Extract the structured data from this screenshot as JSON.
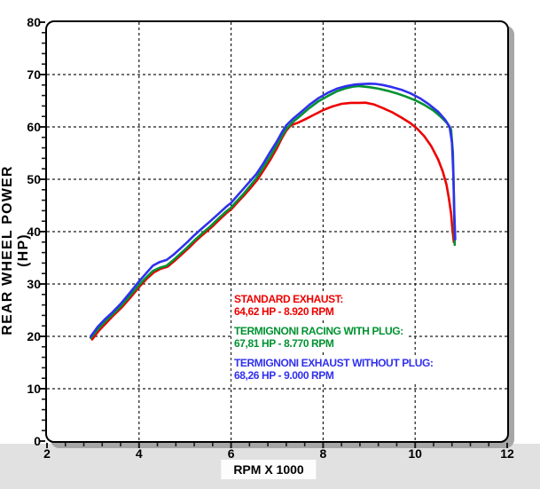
{
  "axes": {
    "x_title": "RPM X 1000",
    "y_title": "REAR WHEEL POWER (HP)",
    "x_tick_labels": [
      "2",
      "4",
      "6",
      "8",
      "10",
      "12"
    ],
    "y_tick_labels": [
      "0",
      "10",
      "20",
      "30",
      "40",
      "50",
      "60",
      "70",
      "80"
    ]
  },
  "legend": {
    "entries": [
      {
        "label": "STANDARD EXHAUST:",
        "value": "64,62 HP - 8.920 RPM",
        "color": "#ee0000"
      },
      {
        "label": "TERMIGNONI RACING WITH PLUG:",
        "value": "67,81 HP - 8.770 RPM",
        "color": "#009230"
      },
      {
        "label": "TERMIGNONI EXHAUST WITHOUT PLUG:",
        "value": "68,26 HP - 9.000 RPM",
        "color": "#3030ee"
      }
    ]
  },
  "chart_data": {
    "type": "line",
    "title": "",
    "xlabel": "RPM X 1000",
    "ylabel": "REAR WHEEL POWER (HP)",
    "xlim": [
      2,
      12
    ],
    "ylim": [
      0,
      80
    ],
    "x_major_ticks": [
      2,
      4,
      6,
      8,
      10,
      12
    ],
    "x_minor_step": 0.4,
    "y_major_ticks": [
      0,
      10,
      20,
      30,
      40,
      50,
      60,
      70,
      80
    ],
    "y_minor_step": 2,
    "grid": {
      "x_lines": [
        4,
        6,
        8,
        10
      ],
      "y_lines": [
        10,
        20,
        30,
        40,
        50,
        60,
        70
      ],
      "style": "dashed"
    },
    "legend_position": "inside-lower-center",
    "series": [
      {
        "name": "STANDARD EXHAUST",
        "peak": "64,62 HP - 8.920 RPM",
        "color": "#ee0000",
        "points": [
          [
            2.98,
            19.4
          ],
          [
            3.12,
            21.0
          ],
          [
            3.27,
            22.4
          ],
          [
            3.42,
            23.8
          ],
          [
            3.62,
            25.5
          ],
          [
            3.82,
            27.5
          ],
          [
            4.02,
            29.6
          ],
          [
            4.17,
            31.0
          ],
          [
            4.32,
            32.2
          ],
          [
            4.47,
            32.9
          ],
          [
            4.62,
            33.3
          ],
          [
            4.77,
            34.4
          ],
          [
            4.92,
            35.6
          ],
          [
            5.07,
            36.8
          ],
          [
            5.22,
            38.1
          ],
          [
            5.37,
            39.3
          ],
          [
            5.57,
            40.8
          ],
          [
            5.77,
            42.5
          ],
          [
            5.92,
            43.7
          ],
          [
            6.02,
            44.4
          ],
          [
            6.12,
            45.4
          ],
          [
            6.27,
            46.8
          ],
          [
            6.42,
            48.3
          ],
          [
            6.57,
            49.9
          ],
          [
            6.72,
            51.9
          ],
          [
            6.87,
            54.0
          ],
          [
            7.0,
            56.0
          ],
          [
            7.1,
            57.8
          ],
          [
            7.2,
            59.3
          ],
          [
            7.3,
            60.3
          ],
          [
            7.45,
            60.8
          ],
          [
            7.6,
            61.4
          ],
          [
            7.8,
            62.3
          ],
          [
            8.0,
            63.2
          ],
          [
            8.2,
            63.9
          ],
          [
            8.4,
            64.4
          ],
          [
            8.6,
            64.6
          ],
          [
            8.8,
            64.6
          ],
          [
            8.92,
            64.62
          ],
          [
            9.1,
            64.3
          ],
          [
            9.3,
            63.6
          ],
          [
            9.5,
            62.8
          ],
          [
            9.7,
            61.8
          ],
          [
            9.9,
            60.7
          ],
          [
            10.05,
            59.6
          ],
          [
            10.2,
            58.2
          ],
          [
            10.35,
            56.3
          ],
          [
            10.5,
            53.8
          ],
          [
            10.6,
            51.5
          ],
          [
            10.68,
            49.0
          ],
          [
            10.73,
            46.5
          ],
          [
            10.78,
            43.5
          ],
          [
            10.81,
            40.5
          ],
          [
            10.84,
            38.0
          ]
        ]
      },
      {
        "name": "TERMIGNONI RACING WITH PLUG",
        "peak": "67,81 HP - 8.770 RPM",
        "color": "#009230",
        "points": [
          [
            2.95,
            19.7
          ],
          [
            3.1,
            21.3
          ],
          [
            3.25,
            22.7
          ],
          [
            3.4,
            24.0
          ],
          [
            3.6,
            25.7
          ],
          [
            3.8,
            27.7
          ],
          [
            4.0,
            29.8
          ],
          [
            4.15,
            31.2
          ],
          [
            4.3,
            32.5
          ],
          [
            4.45,
            33.1
          ],
          [
            4.6,
            33.5
          ],
          [
            4.75,
            34.6
          ],
          [
            4.9,
            35.8
          ],
          [
            5.05,
            37.0
          ],
          [
            5.2,
            38.3
          ],
          [
            5.35,
            39.5
          ],
          [
            5.55,
            41.0
          ],
          [
            5.75,
            42.7
          ],
          [
            5.9,
            43.9
          ],
          [
            6.0,
            44.6
          ],
          [
            6.1,
            45.6
          ],
          [
            6.25,
            47.0
          ],
          [
            6.4,
            48.6
          ],
          [
            6.55,
            50.2
          ],
          [
            6.7,
            52.2
          ],
          [
            6.85,
            54.3
          ],
          [
            7.0,
            56.6
          ],
          [
            7.1,
            58.2
          ],
          [
            7.2,
            59.6
          ],
          [
            7.35,
            61.0
          ],
          [
            7.5,
            62.1
          ],
          [
            7.7,
            63.6
          ],
          [
            7.9,
            64.9
          ],
          [
            8.1,
            65.9
          ],
          [
            8.3,
            66.8
          ],
          [
            8.5,
            67.4
          ],
          [
            8.65,
            67.7
          ],
          [
            8.77,
            67.81
          ],
          [
            9.0,
            67.6
          ],
          [
            9.2,
            67.3
          ],
          [
            9.4,
            66.9
          ],
          [
            9.6,
            66.4
          ],
          [
            9.8,
            65.8
          ],
          [
            10.0,
            65.1
          ],
          [
            10.2,
            64.2
          ],
          [
            10.4,
            63.1
          ],
          [
            10.55,
            62.0
          ],
          [
            10.7,
            60.7
          ],
          [
            10.78,
            59.5
          ],
          [
            10.82,
            55.0
          ],
          [
            10.84,
            47.0
          ],
          [
            10.86,
            37.5
          ]
        ]
      },
      {
        "name": "TERMIGNONI EXHAUST WITHOUT PLUG",
        "peak": "68,26 HP - 9.000 RPM",
        "color": "#3030ee",
        "points": [
          [
            2.95,
            20.0
          ],
          [
            3.1,
            21.8
          ],
          [
            3.25,
            23.2
          ],
          [
            3.4,
            24.4
          ],
          [
            3.6,
            26.2
          ],
          [
            3.8,
            28.3
          ],
          [
            4.0,
            30.5
          ],
          [
            4.15,
            32.0
          ],
          [
            4.3,
            33.5
          ],
          [
            4.45,
            34.2
          ],
          [
            4.6,
            34.6
          ],
          [
            4.75,
            35.6
          ],
          [
            4.9,
            36.8
          ],
          [
            5.05,
            38.0
          ],
          [
            5.2,
            39.3
          ],
          [
            5.35,
            40.5
          ],
          [
            5.55,
            42.0
          ],
          [
            5.75,
            43.6
          ],
          [
            5.9,
            44.8
          ],
          [
            6.0,
            45.5
          ],
          [
            6.1,
            46.5
          ],
          [
            6.25,
            48.0
          ],
          [
            6.4,
            49.5
          ],
          [
            6.55,
            51.0
          ],
          [
            6.7,
            53.0
          ],
          [
            6.85,
            55.2
          ],
          [
            7.0,
            57.3
          ],
          [
            7.1,
            58.9
          ],
          [
            7.2,
            60.3
          ],
          [
            7.35,
            61.6
          ],
          [
            7.5,
            62.7
          ],
          [
            7.7,
            64.2
          ],
          [
            7.9,
            65.5
          ],
          [
            8.1,
            66.5
          ],
          [
            8.3,
            67.3
          ],
          [
            8.5,
            67.8
          ],
          [
            8.7,
            68.1
          ],
          [
            8.9,
            68.2
          ],
          [
            9.0,
            68.26
          ],
          [
            9.15,
            68.2
          ],
          [
            9.3,
            68.0
          ],
          [
            9.5,
            67.6
          ],
          [
            9.7,
            67.1
          ],
          [
            9.9,
            66.4
          ],
          [
            10.1,
            65.5
          ],
          [
            10.3,
            64.3
          ],
          [
            10.5,
            62.9
          ],
          [
            10.65,
            61.4
          ],
          [
            10.75,
            60.0
          ],
          [
            10.8,
            57.0
          ],
          [
            10.83,
            51.0
          ],
          [
            10.85,
            44.0
          ],
          [
            10.87,
            38.5
          ]
        ]
      }
    ]
  },
  "style": {
    "gridline_color": "#1a1a1a",
    "axis_border_color": "#000000",
    "shadow_color": "#a6a6a6",
    "bottom_strip_color": "#e1e1e1",
    "plot_bg": "#ffffff"
  }
}
